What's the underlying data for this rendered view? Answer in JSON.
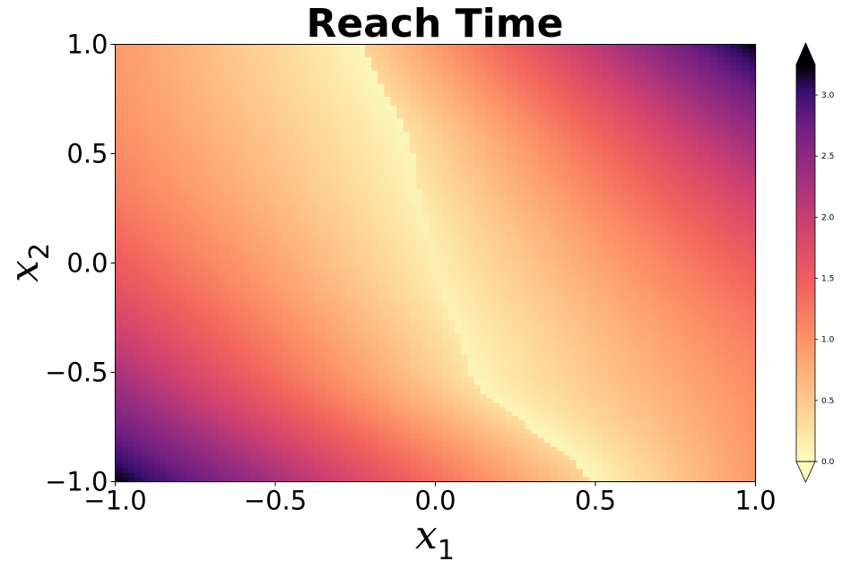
{
  "chart_data": {
    "type": "heatmap",
    "title": "Reach Time",
    "xlabel": {
      "base": "x",
      "sub": "1"
    },
    "ylabel": {
      "base": "x",
      "sub": "2"
    },
    "xlim": [
      -1.0,
      1.0
    ],
    "ylim": [
      -1.0,
      1.0
    ],
    "xticks": [
      -1.0,
      -0.5,
      0.0,
      0.5,
      1.0
    ],
    "xtick_labels": [
      "−1.0",
      "−0.5",
      "0.0",
      "0.5",
      "1.0"
    ],
    "yticks": [
      1.0,
      0.5,
      0.0,
      -0.5,
      -1.0
    ],
    "ytick_labels": [
      "1.0",
      "0.5",
      "0.0",
      "−0.5",
      "−1.0"
    ],
    "grid": false,
    "colormap": "magma_r",
    "colorbar": {
      "range": [
        0.0,
        3.25
      ],
      "extend": "both",
      "ticks": [
        0.0,
        0.5,
        1.0,
        1.5,
        2.0,
        2.5,
        3.0
      ],
      "tick_labels": [
        "0.0",
        "0.5",
        "1.0",
        "1.5",
        "2.0",
        "2.5",
        "3.0"
      ],
      "placement": "right"
    },
    "grid_resolution": [
      100,
      100
    ],
    "field": {
      "description_values": "reach time z(x1,x2), piecewise around a switching curve",
      "switch_curve_samples": [
        {
          "x2": 1.0,
          "x1": -0.22
        },
        {
          "x2": 0.5,
          "x1": -0.07
        },
        {
          "x2": 0.0,
          "x1": 0.0
        },
        {
          "x2": -0.5,
          "x1": 0.1
        },
        {
          "x2": -1.0,
          "x1": 0.48
        }
      ],
      "min_value": 0.0,
      "max_value": 3.3,
      "corner_values": {
        "top_left": 1.2,
        "top_right": 3.3,
        "bottom_left": 3.3,
        "bottom_right": 1.2
      }
    }
  }
}
